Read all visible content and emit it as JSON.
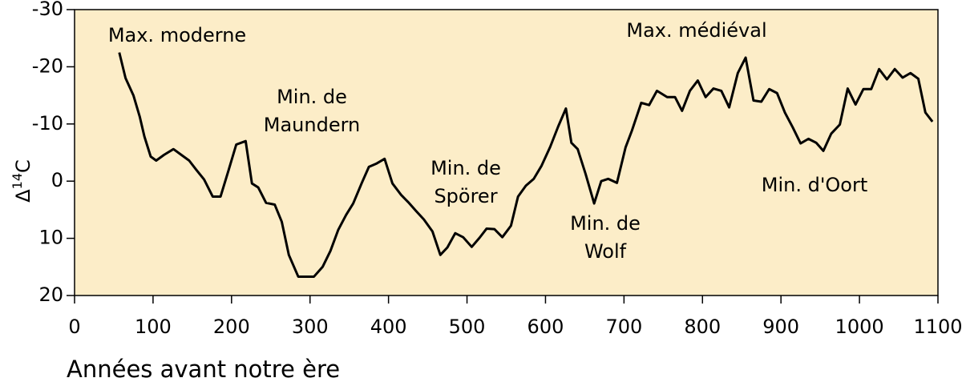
{
  "chart_data": {
    "type": "line",
    "xlabel": "Années avant notre ère",
    "ylabel": [
      "Δ",
      "14",
      "C"
    ],
    "x": [
      57,
      65,
      75,
      83,
      89,
      97,
      104,
      114,
      126,
      136,
      146,
      155,
      165,
      176,
      186,
      196,
      206,
      218,
      226,
      234,
      244,
      255,
      264,
      273,
      285,
      296,
      305,
      316,
      326,
      336,
      346,
      355,
      366,
      375,
      385,
      395,
      405,
      416,
      426,
      435,
      445,
      456,
      466,
      475,
      485,
      495,
      506,
      516,
      525,
      535,
      545,
      556,
      565,
      575,
      585,
      595,
      606,
      616,
      626,
      633,
      641,
      651,
      662,
      671,
      680,
      691,
      702,
      710,
      722,
      732,
      742,
      755,
      765,
      774,
      784,
      794,
      804,
      814,
      824,
      834,
      845,
      855,
      865,
      875,
      885,
      895,
      905,
      915,
      925,
      935,
      945,
      954,
      964,
      975,
      985,
      995,
      1005,
      1015,
      1025,
      1035,
      1045,
      1055,
      1065,
      1075,
      1084,
      1093
    ],
    "series": [
      {
        "color": "#000000",
        "values": [
          -22.5,
          -18,
          -15,
          -11.3,
          -7.8,
          -4.3,
          -3.6,
          -4.6,
          -5.6,
          -4.6,
          -3.6,
          -2,
          -0.3,
          2.7,
          2.7,
          -1.8,
          -6.4,
          -7,
          0.4,
          1.1,
          3.8,
          4.1,
          7.1,
          12.9,
          16.7,
          16.7,
          16.7,
          15,
          12.2,
          8.5,
          5.9,
          3.9,
          0.3,
          -2.5,
          -3.1,
          -3.9,
          0.4,
          2.4,
          3.8,
          5.2,
          6.7,
          8.8,
          12.9,
          11.6,
          9.1,
          9.8,
          11.5,
          9.9,
          8.3,
          8.4,
          9.8,
          7.8,
          2.7,
          0.8,
          -0.4,
          -2.7,
          -6,
          -9.5,
          -12.7,
          -6.7,
          -5.6,
          -1.3,
          3.9,
          0,
          -0.4,
          0.3,
          -5.9,
          -8.8,
          -13.7,
          -13.3,
          -15.8,
          -14.7,
          -14.7,
          -12.3,
          -15.8,
          -17.6,
          -14.7,
          -16.2,
          -15.8,
          -12.9,
          -18.9,
          -21.6,
          -14.1,
          -13.9,
          -16.1,
          -15.4,
          -12,
          -9.4,
          -6.6,
          -7.4,
          -6.7,
          -5.3,
          -8.3,
          -9.9,
          -16.2,
          -13.4,
          -16.1,
          -16.1,
          -19.6,
          -17.8,
          -19.6,
          -18.1,
          -18.9,
          -17.9,
          -12,
          -10.4
        ]
      }
    ],
    "xlim": [
      0,
      1100
    ],
    "xticks": [
      0,
      100,
      200,
      300,
      400,
      500,
      600,
      700,
      800,
      900,
      1000,
      1100
    ],
    "ylim": [
      20,
      -30
    ],
    "yticks": [
      -30,
      -20,
      -10,
      0,
      10,
      20
    ],
    "background": "#fcedc8",
    "annotations": [
      [
        "Max. moderne"
      ],
      [
        "Min. de",
        "Maundern"
      ],
      [
        "Min. de",
        "Spörer"
      ],
      [
        "Min. de",
        "Wolf"
      ],
      [
        "Max. médiéval"
      ],
      [
        "Min. d'Oort"
      ]
    ]
  }
}
